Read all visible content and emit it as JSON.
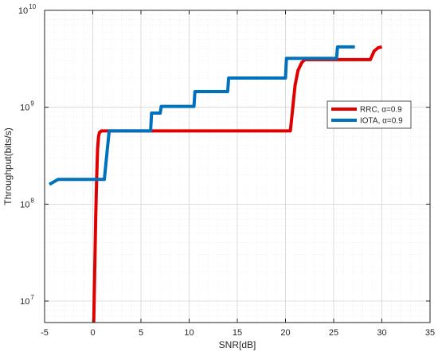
{
  "chart_data": {
    "type": "line",
    "title": "",
    "xlabel": "SNR[dB]",
    "ylabel": "Throughput(bits/s)",
    "xlim": [
      -5,
      35
    ],
    "ylim": [
      6000000,
      10000000000
    ],
    "yscale": "log",
    "grid": true,
    "minor_grid": true,
    "legend_position": "right",
    "x_ticks": [
      {
        "value": -5,
        "label": "-5"
      },
      {
        "value": 0,
        "label": "0"
      },
      {
        "value": 5,
        "label": "5"
      },
      {
        "value": 10,
        "label": "10"
      },
      {
        "value": 15,
        "label": "15"
      },
      {
        "value": 20,
        "label": "20"
      },
      {
        "value": 25,
        "label": "25"
      },
      {
        "value": 30,
        "label": "30"
      },
      {
        "value": 35,
        "label": "35"
      }
    ],
    "y_ticks": [
      {
        "value": 10000000,
        "base": "10",
        "exp": "7"
      },
      {
        "value": 100000000,
        "base": "10",
        "exp": "8"
      },
      {
        "value": 1000000000,
        "base": "10",
        "exp": "9"
      },
      {
        "value": 10000000000,
        "base": "10",
        "exp": "10"
      }
    ],
    "series": [
      {
        "name": "RRC, α=0.9",
        "color": "#e00000",
        "x": [
          0.1,
          0.2,
          0.3,
          0.4,
          0.5,
          0.6,
          0.7,
          0.9,
          20.5,
          20.6,
          20.8,
          21.0,
          21.3,
          21.7,
          22.0,
          28.8,
          29.2,
          29.6,
          30.0
        ],
        "y": [
          6000000,
          20000000,
          70000000,
          180000000,
          370000000,
          500000000,
          550000000,
          570000000,
          570000000,
          700000000,
          1100000000,
          1700000000,
          2400000000,
          2900000000,
          3100000000,
          3100000000,
          3800000000,
          4100000000,
          4200000000
        ]
      },
      {
        "name": "IOTA, α=0.9",
        "color": "#0072bd",
        "x": [
          -4.5,
          -3.6,
          -3.4,
          1.2,
          1.7,
          6.0,
          6.1,
          7.0,
          7.1,
          10.5,
          10.6,
          14.0,
          14.1,
          20.0,
          20.1,
          25.3,
          25.4,
          27.2
        ],
        "y": [
          160000000,
          180000000,
          180000000,
          180000000,
          570000000,
          570000000,
          870000000,
          870000000,
          1020000000,
          1020000000,
          1450000000,
          1450000000,
          2000000000,
          2000000000,
          3200000000,
          3200000000,
          4200000000,
          4200000000
        ]
      }
    ]
  }
}
